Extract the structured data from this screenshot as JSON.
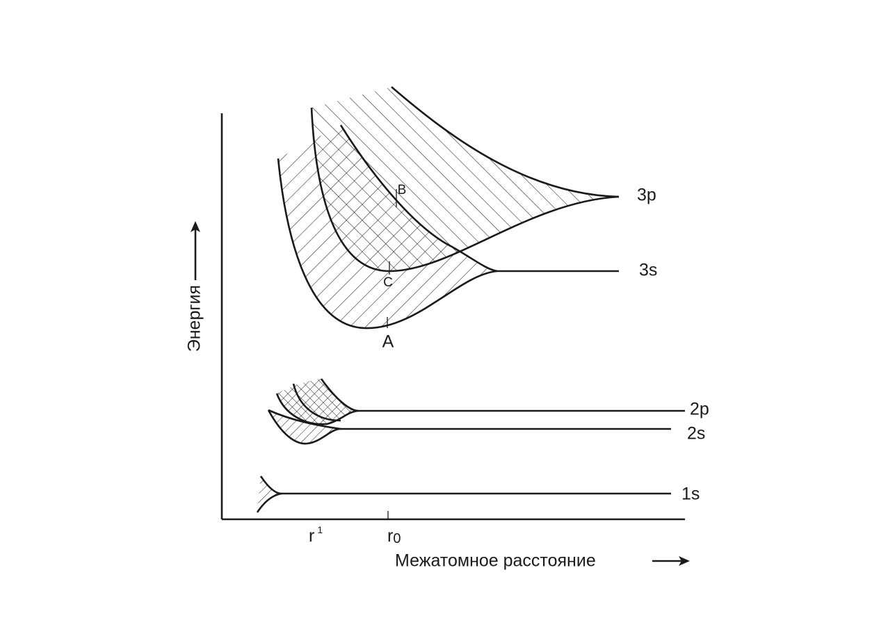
{
  "axes": {
    "y_label": "Энергия",
    "x_label": "Межатомное расстояние"
  },
  "levels": [
    "3p",
    "3s",
    "2p",
    "2s",
    "1s"
  ],
  "points": [
    "A",
    "B",
    "C"
  ],
  "distances": {
    "r1": {
      "base": "r",
      "sup": "1"
    },
    "r0": {
      "base": "r",
      "sub": "0"
    }
  }
}
